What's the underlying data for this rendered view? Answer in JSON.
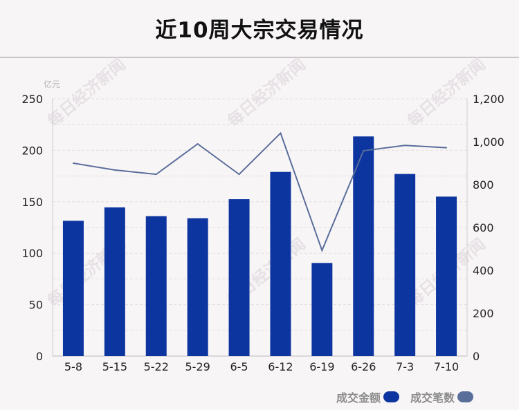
{
  "chart_data": {
    "type": "bar",
    "title": "近10周大宗交易情况",
    "categories": [
      "5-8",
      "5-15",
      "5-22",
      "5-29",
      "6-5",
      "6-12",
      "6-19",
      "6-26",
      "7-3",
      "7-10"
    ],
    "series": [
      {
        "name": "成交金额",
        "type": "bar",
        "axis": "left",
        "values": [
          131.5,
          144.5,
          136,
          134,
          152.5,
          179,
          90.5,
          213.5,
          177,
          155
        ]
      },
      {
        "name": "成交笔数",
        "type": "line",
        "axis": "right",
        "values": [
          900,
          868,
          848,
          990,
          848,
          1040,
          493,
          958,
          983,
          972
        ]
      }
    ],
    "left_axis": {
      "label": "亿元",
      "ylim": [
        0,
        250
      ],
      "ticks": [
        "0",
        "50",
        "100",
        "150",
        "200",
        "250"
      ]
    },
    "right_axis": {
      "label": "",
      "ylim": [
        0,
        1200
      ],
      "ticks": [
        "0",
        "200",
        "400",
        "600",
        "800",
        "1,000",
        "1,200"
      ]
    },
    "grid": true,
    "legend_position": "bottom-right",
    "colors": {
      "bar": "#0d35a0",
      "line": "#5a6e9a",
      "background": "#f8f5f7"
    }
  },
  "watermark": "每日经济新闻"
}
